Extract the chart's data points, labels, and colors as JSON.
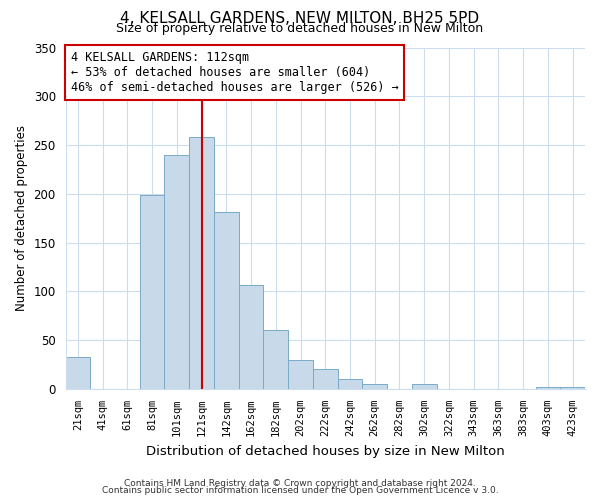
{
  "title": "4, KELSALL GARDENS, NEW MILTON, BH25 5PD",
  "subtitle": "Size of property relative to detached houses in New Milton",
  "xlabel": "Distribution of detached houses by size in New Milton",
  "ylabel": "Number of detached properties",
  "bar_color": "#c8daea",
  "bar_edge_color": "#7aaac8",
  "categories": [
    "21sqm",
    "41sqm",
    "61sqm",
    "81sqm",
    "101sqm",
    "121sqm",
    "142sqm",
    "162sqm",
    "182sqm",
    "202sqm",
    "222sqm",
    "242sqm",
    "262sqm",
    "282sqm",
    "302sqm",
    "322sqm",
    "343sqm",
    "363sqm",
    "383sqm",
    "403sqm",
    "423sqm"
  ],
  "values": [
    33,
    0,
    0,
    199,
    240,
    258,
    181,
    107,
    60,
    30,
    20,
    10,
    5,
    0,
    5,
    0,
    0,
    0,
    0,
    2,
    2
  ],
  "vline_index": 5,
  "vline_color": "#cc0000",
  "ylim": [
    0,
    350
  ],
  "annotation_title": "4 KELSALL GARDENS: 112sqm",
  "annotation_line1": "← 53% of detached houses are smaller (604)",
  "annotation_line2": "46% of semi-detached houses are larger (526) →",
  "footer1": "Contains HM Land Registry data © Crown copyright and database right 2024.",
  "footer2": "Contains public sector information licensed under the Open Government Licence v 3.0.",
  "background_color": "#ffffff",
  "grid_color": "#ccddee"
}
